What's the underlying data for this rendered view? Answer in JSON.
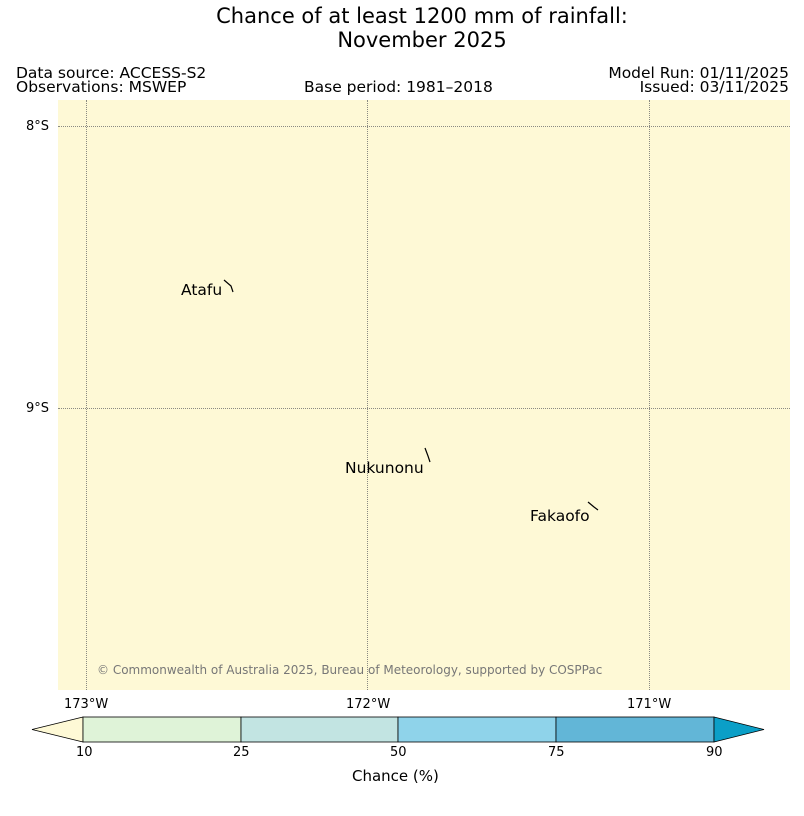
{
  "title": {
    "line1": "Chance of at least 1200 mm of rainfall:",
    "line2": "November 2025"
  },
  "header": {
    "data_source": "Data source: ACCESS-S2",
    "observations": "Observations: MSWEP",
    "base_period": "Base period: 1981–2018",
    "model_run": "Model Run: 01/11/2025",
    "issued": "Issued: 03/11/2025"
  },
  "map": {
    "background_color": "#fef9d6",
    "latitude_labels": [
      "8°S",
      "9°S"
    ],
    "longitude_labels": [
      "173°W",
      "172°W",
      "171°W"
    ],
    "islands": [
      {
        "name": "Atafu"
      },
      {
        "name": "Nukunonu"
      },
      {
        "name": "Fakaofo"
      }
    ],
    "copyright": "© Commonwealth of Australia 2025, Bureau of Meteorology, supported by COSPPac"
  },
  "colorbar": {
    "ticks": [
      "10",
      "25",
      "50",
      "75",
      "90"
    ],
    "label": "Chance (%)",
    "colors": {
      "below_10": "#fef9d6",
      "10_25": "#dff3d8",
      "25_50": "#c2e4e2",
      "50_75": "#8fd3ea",
      "75_90": "#62b6d7",
      "above_90": "#0b9fc7"
    }
  }
}
